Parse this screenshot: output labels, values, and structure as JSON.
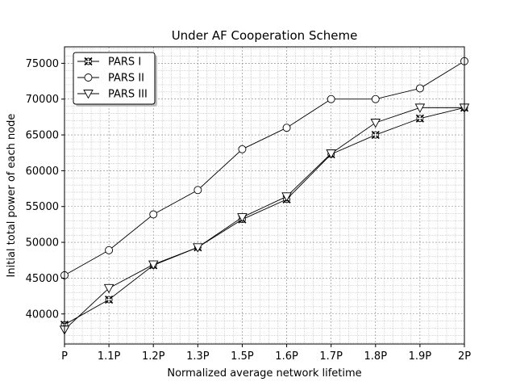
{
  "chart_data": {
    "type": "line",
    "title": "Under AF Cooperation Scheme",
    "xlabel": "Normalized average network lifetime",
    "ylabel": "Initial total power of each node",
    "categories": [
      "P",
      "1.1P",
      "1.2P",
      "1.3P",
      "1.5P",
      "1.6P",
      "1.7P",
      "1.8P",
      "1.9P",
      "2P"
    ],
    "ylim": [
      35800,
      77300
    ],
    "yticks": [
      40000,
      45000,
      50000,
      55000,
      60000,
      65000,
      70000,
      75000
    ],
    "ytick_labels": [
      "40000",
      "45000",
      "50000",
      "55000",
      "60000",
      "65000",
      "70000",
      "75000"
    ],
    "grid": true,
    "legend_position": "top-left",
    "series": [
      {
        "name": "PARS I",
        "marker": "x-circle",
        "values": [
          38500,
          42000,
          46800,
          49300,
          53200,
          56000,
          62300,
          65000,
          67300,
          68800
        ]
      },
      {
        "name": "PARS II",
        "marker": "circle",
        "values": [
          45400,
          48900,
          53900,
          57300,
          63000,
          66000,
          70000,
          70000,
          71500,
          75300
        ]
      },
      {
        "name": "PARS III",
        "marker": "triangle-down",
        "values": [
          37800,
          43600,
          46900,
          49300,
          53500,
          56400,
          62400,
          66700,
          68800,
          68800
        ]
      }
    ]
  }
}
